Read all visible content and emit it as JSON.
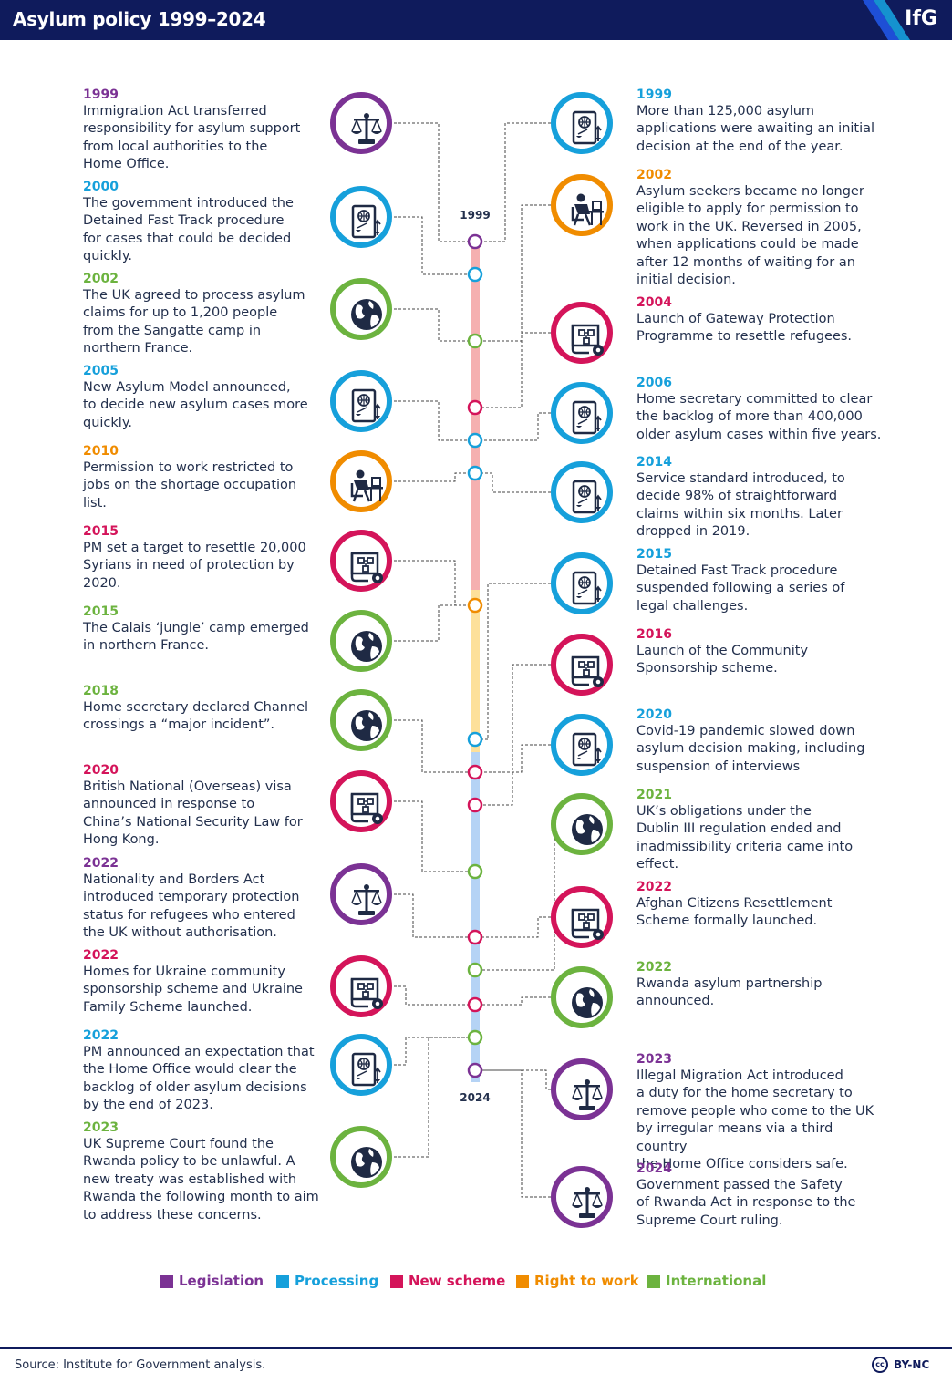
{
  "header": {
    "title": "Asylum policy 1999–2024",
    "logo": "IfG"
  },
  "colors": {
    "Legislation": "#7b3294",
    "Processing": "#16a0db",
    "New scheme": "#d4145a",
    "Right to work": "#f08c00",
    "International": "#6cb33f"
  },
  "timeline": {
    "start_label": "1999",
    "end_label": "2024"
  },
  "left_events": [
    {
      "year": "1999",
      "category": "Legislation",
      "icon": "scales-icon",
      "text": [
        "Immigration Act transferred",
        "responsibility for asylum support",
        "from local authorities to the",
        "Home Office."
      ]
    },
    {
      "year": "2000",
      "category": "Processing",
      "icon": "document-processing-icon",
      "text": [
        "The government introduced the",
        "Detained Fast Track procedure",
        "for cases that could be decided",
        "quickly."
      ]
    },
    {
      "year": "2002",
      "category": "International",
      "icon": "globe-icon",
      "text": [
        "The UK agreed to process asylum",
        "claims for up to 1,200 people",
        "from the Sangatte camp in",
        "northern France."
      ]
    },
    {
      "year": "2005",
      "category": "Processing",
      "icon": "document-processing-icon",
      "text": [
        "New Asylum Model announced,",
        "to decide new asylum cases more",
        "quickly."
      ]
    },
    {
      "year": "2010",
      "category": "Right to work",
      "icon": "worker-at-desk-icon",
      "text": [
        "Permission to work restricted to",
        "jobs on the shortage occupation",
        "list."
      ]
    },
    {
      "year": "2015",
      "category": "New scheme",
      "icon": "scheme-plan-icon",
      "text": [
        "PM set a target to resettle 20,000",
        "Syrians in need of protection by",
        "2020."
      ]
    },
    {
      "year": "2015",
      "category": "International",
      "icon": "globe-icon",
      "text": [
        "The Calais ‘jungle’ camp emerged",
        "in northern France."
      ]
    },
    {
      "year": "2018",
      "category": "International",
      "icon": "globe-icon",
      "text": [
        "Home secretary declared Channel",
        "crossings a “major incident”."
      ]
    },
    {
      "year": "2020",
      "category": "New scheme",
      "icon": "scheme-plan-icon",
      "text": [
        "British National (Overseas) visa",
        "announced in response to",
        "China’s National Security Law for",
        "Hong Kong."
      ]
    },
    {
      "year": "2022",
      "category": "Legislation",
      "icon": "scales-icon",
      "text": [
        "Nationality and Borders Act",
        "introduced temporary protection",
        "status for refugees who entered",
        "the UK without authorisation."
      ]
    },
    {
      "year": "2022",
      "category": "New scheme",
      "icon": "scheme-plan-icon",
      "text": [
        "Homes for Ukraine community",
        "sponsorship scheme and Ukraine",
        "Family Scheme launched."
      ]
    },
    {
      "year": "2022",
      "category": "Processing",
      "icon": "document-processing-icon",
      "text": [
        "PM announced an expectation that",
        "the Home Office would clear the",
        "backlog of older asylum decisions",
        "by the end of 2023."
      ]
    },
    {
      "year": "2023",
      "category": "International",
      "icon": "globe-icon",
      "text": [
        "UK Supreme Court found the",
        "Rwanda policy to be unlawful. A",
        "new treaty was established with",
        "Rwanda the following month to aim",
        "to address these concerns."
      ]
    }
  ],
  "right_events": [
    {
      "year": "1999",
      "category": "Processing",
      "icon": "document-processing-icon",
      "text": [
        "More than 125,000 asylum",
        "applications were awaiting an initial",
        "decision at the end of the year."
      ]
    },
    {
      "year": "2002",
      "category": "Right to work",
      "icon": "worker-at-desk-icon",
      "text": [
        "Asylum seekers became no longer",
        "eligible to apply for permission to",
        "work in the UK. Reversed in 2005,",
        "when applications could be made",
        "after 12 months of waiting for an",
        "initial decision."
      ]
    },
    {
      "year": "2004",
      "category": "New scheme",
      "icon": "scheme-plan-icon",
      "text": [
        "Launch of Gateway Protection",
        "Programme to resettle refugees."
      ]
    },
    {
      "year": "2006",
      "category": "Processing",
      "icon": "document-processing-icon",
      "text": [
        "Home secretary committed to clear",
        "the backlog of more than 400,000",
        "older asylum cases within five years."
      ]
    },
    {
      "year": "2014",
      "category": "Processing",
      "icon": "document-processing-icon",
      "text": [
        "Service standard introduced, to",
        "decide 98% of straightforward",
        "claims within six months. Later",
        "dropped in 2019."
      ]
    },
    {
      "year": "2015",
      "category": "Processing",
      "icon": "document-processing-icon",
      "text": [
        "Detained Fast Track procedure",
        "suspended following a series of",
        "legal challenges."
      ]
    },
    {
      "year": "2016",
      "category": "New scheme",
      "icon": "scheme-plan-icon",
      "text": [
        "Launch of the Community",
        "Sponsorship scheme."
      ]
    },
    {
      "year": "2020",
      "category": "Processing",
      "icon": "document-processing-icon",
      "text": [
        "Covid-19 pandemic slowed down",
        "asylum decision making, including",
        "suspension of interviews"
      ]
    },
    {
      "year": "2021",
      "category": "International",
      "icon": "globe-icon",
      "text": [
        "UK’s obligations under the",
        "Dublin III regulation ended and",
        "inadmissibility criteria came into",
        "effect."
      ]
    },
    {
      "year": "2022",
      "category": "New scheme",
      "icon": "scheme-plan-icon",
      "text": [
        "Afghan Citizens Resettlement",
        "Scheme formally launched."
      ]
    },
    {
      "year": "2022",
      "category": "International",
      "icon": "globe-icon",
      "text": [
        "Rwanda asylum partnership",
        "announced."
      ]
    },
    {
      "year": "2023",
      "category": "Legislation",
      "icon": "scales-icon",
      "text": [
        "Illegal Migration Act introduced",
        "a duty for the home secretary to",
        "remove people who come to the UK",
        "by irregular means via a third country",
        "the Home Office considers safe."
      ]
    },
    {
      "year": "2024",
      "category": "Legislation",
      "icon": "scales-icon",
      "text": [
        "Government passed the Safety",
        "of Rwanda Act in response to the",
        "Supreme Court ruling."
      ]
    }
  ],
  "legend": [
    {
      "label": "Legislation",
      "color": "#7b3294"
    },
    {
      "label": "Processing",
      "color": "#16a0db"
    },
    {
      "label": "New scheme",
      "color": "#d4145a"
    },
    {
      "label": "Right to work",
      "color": "#f08c00"
    },
    {
      "label": "International",
      "color": "#6cb33f"
    }
  ],
  "footer": {
    "source": "Source: Institute for Government analysis.",
    "license": "BY-NC",
    "cc_mark": "cc"
  }
}
